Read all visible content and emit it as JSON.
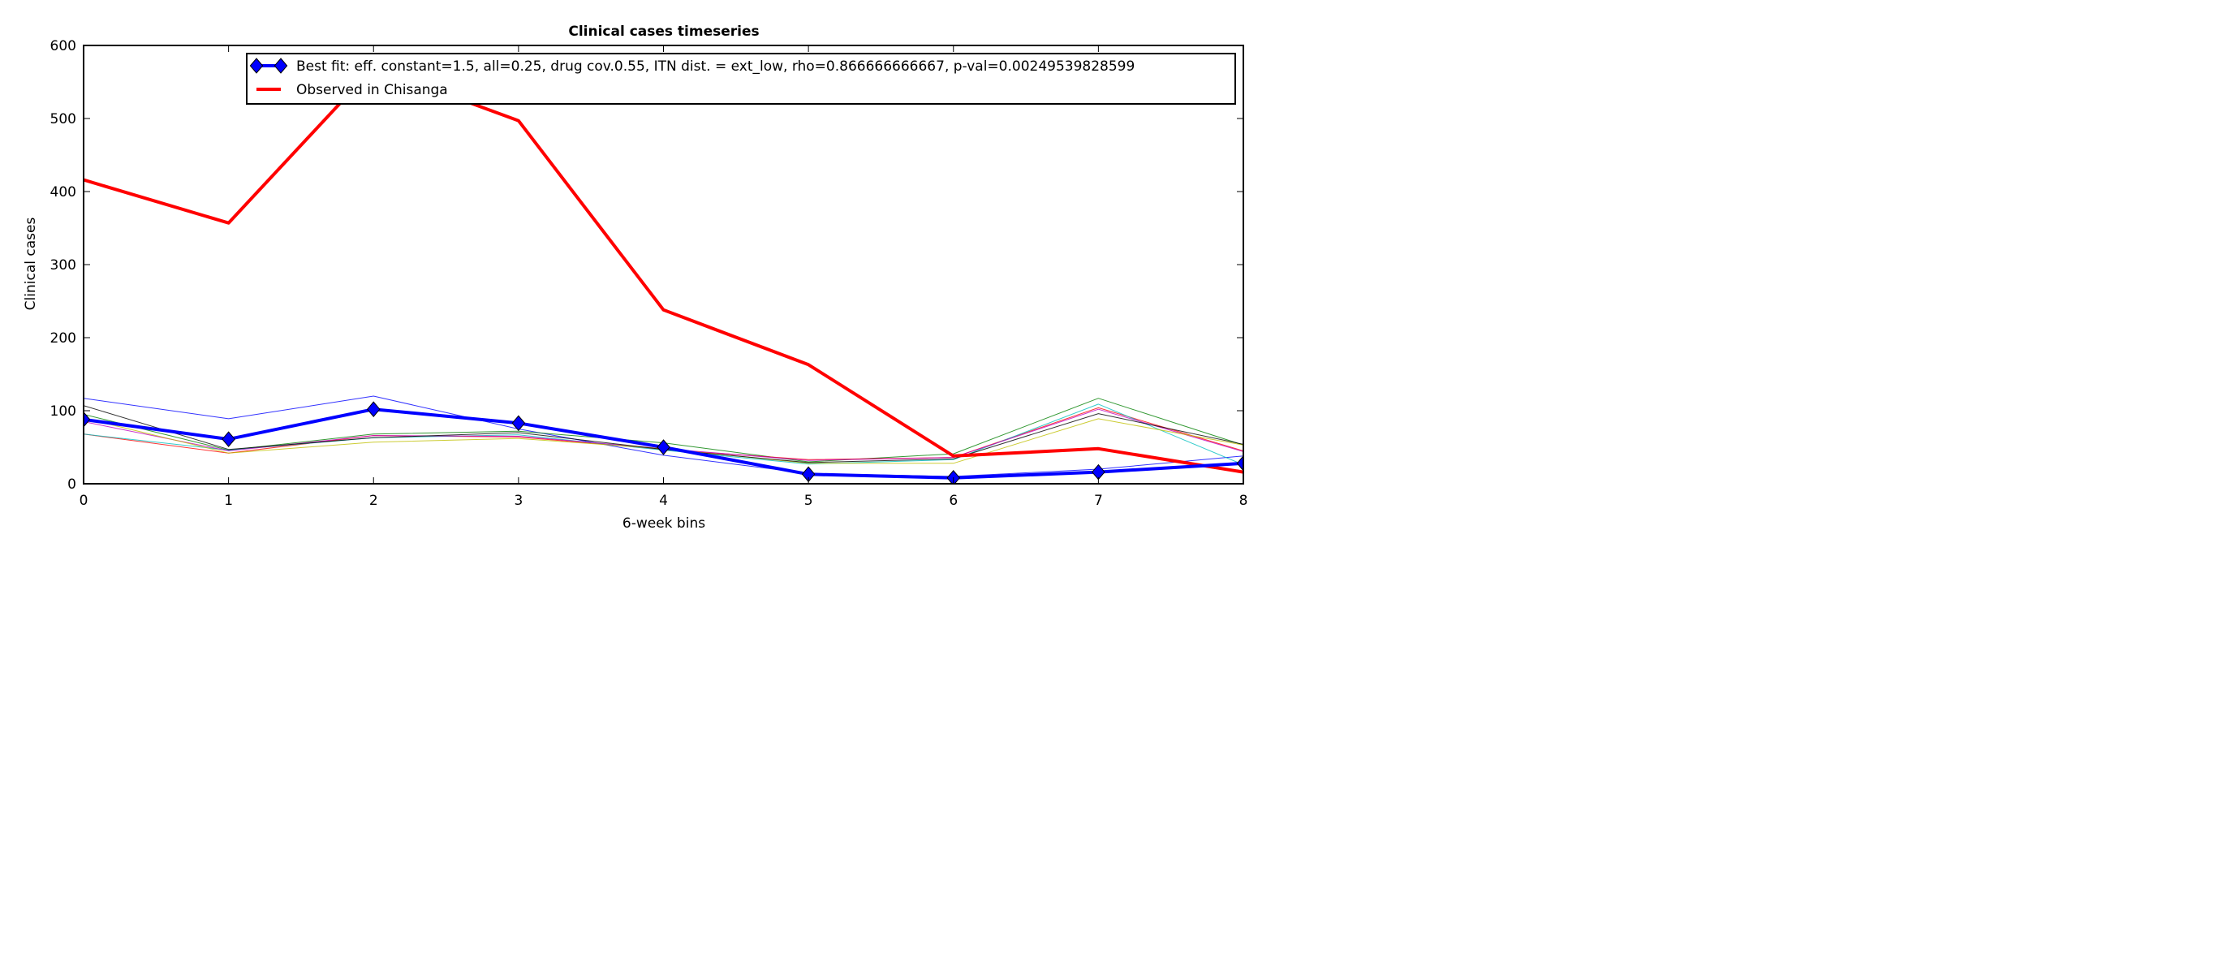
{
  "chart_data": {
    "type": "line",
    "title": "Clinical cases timeseries",
    "xlabel": "6-week bins",
    "ylabel": "Clinical cases",
    "xlim": [
      0,
      8
    ],
    "ylim": [
      0,
      600
    ],
    "x": [
      0,
      1,
      2,
      3,
      4,
      5,
      6,
      7,
      8
    ],
    "x_ticks": [
      "0",
      "1",
      "2",
      "3",
      "4",
      "5",
      "6",
      "7",
      "8"
    ],
    "y_ticks": [
      "0",
      "100",
      "200",
      "300",
      "400",
      "500",
      "600"
    ],
    "grid": false,
    "legend_position": "top-right",
    "legend": [
      {
        "label": "Best fit: eff. constant=1.5, all=0.25, drug cov.0.55, ITN dist. = ext_low, rho=0.866666666667, p-val=0.00249539828599",
        "color": "#0000ff",
        "marker": "diamond"
      },
      {
        "label": "Observed in Chisanga",
        "color": "#ff0000"
      }
    ],
    "series": [
      {
        "name": "Observed in Chisanga",
        "role": "observed",
        "color": "#ff0000",
        "values": [
          416,
          357,
          570,
          497,
          238,
          163,
          38,
          48,
          16
        ]
      },
      {
        "name": "Best fit: eff. constant=1.5, all=0.25, drug cov.0.55, ITN dist. = ext_low, rho=0.866666666667, p-val=0.00249539828599",
        "role": "best_fit",
        "color": "#0000ff",
        "values": [
          88,
          61,
          102,
          83,
          50,
          13,
          8,
          16,
          28
        ]
      },
      {
        "role": "other",
        "color": "#0000ff",
        "values": [
          117,
          89,
          120,
          75,
          39,
          14,
          10,
          20,
          38
        ]
      },
      {
        "role": "other",
        "color": "#008000",
        "values": [
          95,
          46,
          68,
          72,
          56,
          30,
          41,
          117,
          53
        ]
      },
      {
        "role": "other",
        "color": "#ff0000",
        "values": [
          68,
          42,
          66,
          64,
          47,
          33,
          36,
          104,
          45
        ]
      },
      {
        "role": "other",
        "color": "#00bfbf",
        "values": [
          68,
          46,
          63,
          67,
          46,
          27,
          33,
          109,
          26
        ]
      },
      {
        "role": "other",
        "color": "#bf00bf",
        "values": [
          85,
          45,
          66,
          65,
          48,
          32,
          36,
          102,
          44
        ]
      },
      {
        "role": "other",
        "color": "#bfbf00",
        "values": [
          90,
          42,
          57,
          62,
          48,
          28,
          28,
          89,
          53
        ]
      },
      {
        "role": "other",
        "color": "#000000",
        "values": [
          107,
          47,
          63,
          70,
          47,
          29,
          34,
          96,
          54
        ]
      }
    ]
  }
}
